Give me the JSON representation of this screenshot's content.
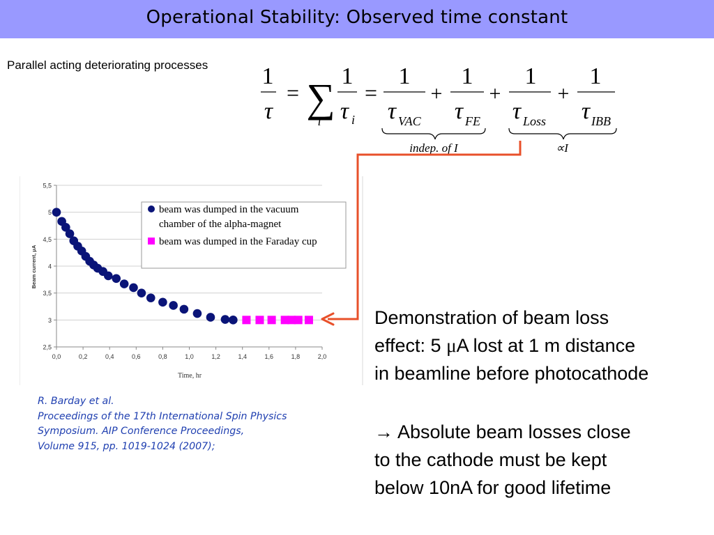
{
  "slide": {
    "title": "Operational Stability: Observed time constant",
    "subtitle": "Parallel acting deteriorating processes"
  },
  "formula": {
    "one": "1",
    "tau": "τ",
    "equals": "=",
    "plus": "+",
    "sum": "∑",
    "sum_index": "i",
    "sub_i": "i",
    "sub_vac": "VAC",
    "sub_fe": "FE",
    "sub_loss": "Loss",
    "sub_ibb": "IBB",
    "brace_left_label": "indep. of  I",
    "brace_right_label": "∝I"
  },
  "chart_data": {
    "type": "scatter",
    "x_ticks": [
      "0,0",
      "0,2",
      "0,4",
      "0,6",
      "0,8",
      "1,0",
      "1,2",
      "1,4",
      "1,6",
      "1,8",
      "2,0"
    ],
    "y_ticks": [
      "2,5",
      "3",
      "3,5",
      "4",
      "4,5",
      "5",
      "5,5"
    ],
    "xlim": [
      0,
      2.0
    ],
    "ylim": [
      2.5,
      5.5
    ],
    "xlabel": "Time, hr",
    "ylabel": "Beam current, μA",
    "grid": "horizontal",
    "legend_position": "top-right",
    "series": [
      {
        "name": "beam was dumped in the vacuum chamber of the alpha-magnet",
        "marker": "circle",
        "color": "#0a1478",
        "x": [
          0.0,
          0.04,
          0.07,
          0.1,
          0.13,
          0.16,
          0.19,
          0.22,
          0.25,
          0.28,
          0.31,
          0.35,
          0.39,
          0.45,
          0.51,
          0.58,
          0.64,
          0.71,
          0.8,
          0.88,
          0.96,
          1.06,
          1.16,
          1.27,
          1.33
        ],
        "y": [
          5.0,
          4.83,
          4.72,
          4.6,
          4.47,
          4.37,
          4.28,
          4.18,
          4.09,
          4.02,
          3.96,
          3.9,
          3.82,
          3.77,
          3.67,
          3.6,
          3.5,
          3.41,
          3.33,
          3.27,
          3.2,
          3.12,
          3.05,
          3.01,
          3.0
        ],
        "legend_lines": [
          "beam was dumped in the vacuum",
          "chamber of the alpha-magnet"
        ]
      },
      {
        "name": "beam was dumped in the Faraday cup",
        "marker": "square",
        "color": "#ff00ff",
        "x": [
          1.43,
          1.53,
          1.62,
          1.72,
          1.77,
          1.82,
          1.9
        ],
        "y": [
          3.0,
          3.0,
          3.0,
          3.0,
          3.0,
          3.0,
          3.0
        ],
        "legend_lines": [
          "beam was dumped in the Faraday cup"
        ]
      }
    ]
  },
  "citation": {
    "authors": "R. Barday et al.",
    "line1": "Proceedings of the 17th International Spin Physics",
    "line2": "Symposium. AIP Conference Proceedings,",
    "line3": "Volume 915, pp. 1019-1024 (2007);"
  },
  "demo": {
    "line1": "Demonstration of beam loss",
    "line2_pre": "effect: 5 ",
    "mu": "μ",
    "line2_post": "A lost at 1 m distance",
    "line3": "in beamline before photocathode"
  },
  "conclusion": {
    "arrow": "→",
    "line1": " Absolute beam losses close",
    "line2": "to the cathode must be kept",
    "line3": "below 10nA for good lifetime"
  },
  "colors": {
    "title_bar": "#9999ff",
    "arrow": "#e8502a",
    "citation": "#1f3fb0"
  }
}
